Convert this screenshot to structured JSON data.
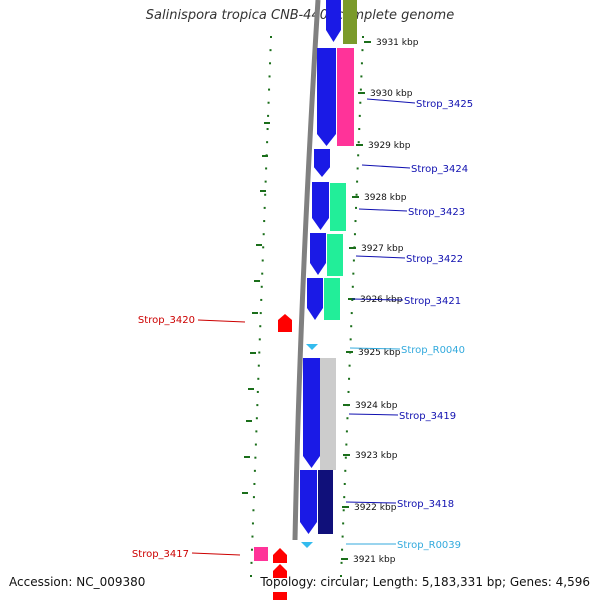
{
  "title": "Salinispora tropica CNB-440, complete genome",
  "footer": {
    "accession": "Accession: NC_009380",
    "topology": "Topology: circular; Length: 5,183,331 bp; Genes: 4,596"
  },
  "colors": {
    "forward_cds": "#1a1ae6",
    "label_cds": "#1010b0",
    "label_rna": "#33aadd",
    "label_reverse": "#cc0000",
    "tick": "#1a6e1a",
    "backbone": "#808080",
    "pink": "#ff3399",
    "green": "#22ee99",
    "gray": "#cccccc",
    "navy": "#10107a",
    "olive": "#7a9a2a",
    "red": "#ff0000",
    "rna": "#33bbee"
  },
  "kbp_labels": [
    {
      "id": "kbp-3931",
      "text": "3931 kbp"
    },
    {
      "id": "kbp-3930",
      "text": "3930 kbp"
    },
    {
      "id": "kbp-3929",
      "text": "3929 kbp"
    },
    {
      "id": "kbp-3928",
      "text": "3928 kbp"
    },
    {
      "id": "kbp-3927",
      "text": "3927 kbp"
    },
    {
      "id": "kbp-3926",
      "text": "3926 kbp"
    },
    {
      "id": "kbp-3925",
      "text": "3925 kbp"
    },
    {
      "id": "kbp-3924",
      "text": "3924 kbp"
    },
    {
      "id": "kbp-3923",
      "text": "3923 kbp"
    },
    {
      "id": "kbp-3922",
      "text": "3922 kbp"
    },
    {
      "id": "kbp-3921",
      "text": "3921 kbp"
    }
  ],
  "features": [
    {
      "id": "strop-3425",
      "text": "Strop_3425",
      "kind": "cds"
    },
    {
      "id": "strop-3424",
      "text": "Strop_3424",
      "kind": "cds"
    },
    {
      "id": "strop-3423",
      "text": "Strop_3423",
      "kind": "cds"
    },
    {
      "id": "strop-3422",
      "text": "Strop_3422",
      "kind": "cds"
    },
    {
      "id": "strop-3421",
      "text": "Strop_3421",
      "kind": "cds"
    },
    {
      "id": "strop-r0040",
      "text": "Strop_R0040",
      "kind": "rna"
    },
    {
      "id": "strop-3419",
      "text": "Strop_3419",
      "kind": "cds"
    },
    {
      "id": "strop-3418",
      "text": "Strop_3418",
      "kind": "cds"
    },
    {
      "id": "strop-r0039",
      "text": "Strop_R0039",
      "kind": "rna"
    },
    {
      "id": "strop-3420",
      "text": "Strop_3420",
      "kind": "reverse"
    },
    {
      "id": "strop-3417",
      "text": "Strop_3417",
      "kind": "reverse"
    }
  ]
}
